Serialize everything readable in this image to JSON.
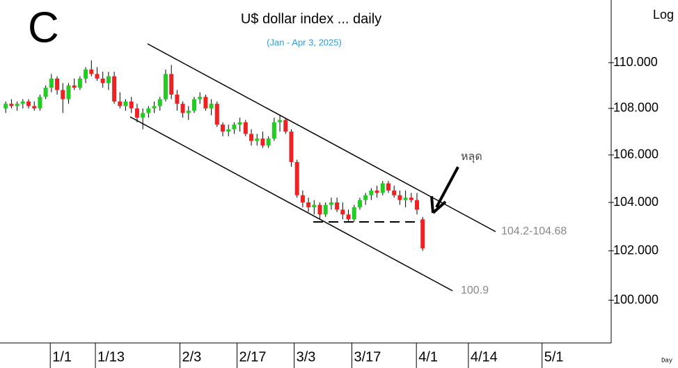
{
  "chart_data": {
    "type": "candlestick",
    "title": "U$ dollar index ... daily",
    "subtitle": "(Jan - Apr 3, 2025)",
    "corner_label": "C",
    "scale_label": "Log",
    "footer_label": "Day",
    "log_scale": true,
    "annotations": {
      "break": "หลุด",
      "upper": "104.2-104.68",
      "lower": "100.9"
    },
    "up_color": "#22cc22",
    "down_color": "#ee2222",
    "ylim": [
      98.3,
      112.8
    ],
    "yticks": [
      {
        "value": 100,
        "label": "100.000"
      },
      {
        "value": 102,
        "label": "102.000"
      },
      {
        "value": 104,
        "label": "104.000"
      },
      {
        "value": 106,
        "label": "106.000"
      },
      {
        "value": 108,
        "label": "108.000"
      },
      {
        "value": 110,
        "label": "110.000"
      }
    ],
    "xlim": [
      -1,
      106
    ],
    "xticks": [
      {
        "value": 7.8,
        "label": "1/1"
      },
      {
        "value": 15.7,
        "label": "1/13"
      },
      {
        "value": 30.5,
        "label": "2/3"
      },
      {
        "value": 40.5,
        "label": "2/17"
      },
      {
        "value": 50.5,
        "label": "3/3"
      },
      {
        "value": 60.6,
        "label": "3/17"
      },
      {
        "value": 71.9,
        "label": "4/1"
      },
      {
        "value": 81,
        "label": "4/14"
      },
      {
        "value": 93.9,
        "label": "5/1"
      }
    ],
    "ohlc": [
      [
        108.0,
        108.3,
        107.8,
        108.2
      ],
      [
        108.2,
        108.4,
        108.0,
        108.1
      ],
      [
        108.1,
        108.3,
        107.9,
        108.2
      ],
      [
        108.2,
        108.4,
        108.0,
        108.3
      ],
      [
        108.3,
        108.4,
        108.0,
        108.1
      ],
      [
        108.1,
        108.3,
        107.9,
        108.0
      ],
      [
        108.0,
        108.6,
        107.9,
        108.5
      ],
      [
        108.5,
        109.0,
        108.4,
        108.9
      ],
      [
        108.9,
        109.5,
        108.7,
        109.3
      ],
      [
        109.3,
        109.4,
        108.6,
        108.8
      ],
      [
        108.8,
        109.1,
        107.8,
        108.4
      ],
      [
        108.4,
        109.1,
        108.2,
        109.0
      ],
      [
        109.0,
        109.3,
        108.8,
        108.9
      ],
      [
        108.9,
        109.4,
        108.8,
        109.3
      ],
      [
        109.3,
        109.8,
        109.1,
        109.7
      ],
      [
        109.7,
        110.1,
        109.4,
        109.5
      ],
      [
        109.5,
        109.8,
        109.2,
        109.3
      ],
      [
        109.3,
        109.6,
        108.9,
        109.1
      ],
      [
        109.1,
        109.6,
        108.8,
        109.4
      ],
      [
        109.4,
        109.6,
        108.2,
        108.3
      ],
      [
        108.3,
        108.7,
        108.0,
        108.1
      ],
      [
        108.1,
        108.4,
        107.9,
        108.3
      ],
      [
        108.3,
        108.5,
        107.8,
        108.0
      ],
      [
        108.0,
        108.2,
        107.4,
        107.6
      ],
      [
        107.6,
        108.0,
        107.1,
        107.8
      ],
      [
        107.8,
        108.1,
        107.6,
        108.0
      ],
      [
        108.0,
        108.3,
        107.8,
        108.1
      ],
      [
        108.1,
        108.5,
        107.9,
        108.4
      ],
      [
        108.4,
        109.7,
        108.3,
        109.5
      ],
      [
        109.5,
        109.9,
        108.4,
        108.6
      ],
      [
        108.6,
        108.8,
        107.9,
        108.2
      ],
      [
        108.2,
        108.3,
        107.6,
        107.8
      ],
      [
        107.8,
        108.1,
        107.5,
        107.9
      ],
      [
        107.9,
        108.5,
        107.8,
        108.4
      ],
      [
        108.4,
        108.7,
        108.2,
        108.5
      ],
      [
        108.5,
        108.6,
        107.9,
        108.0
      ],
      [
        108.0,
        108.4,
        107.7,
        108.2
      ],
      [
        108.2,
        108.3,
        107.2,
        107.3
      ],
      [
        107.3,
        107.4,
        106.8,
        107.0
      ],
      [
        107.0,
        107.3,
        106.8,
        107.1
      ],
      [
        107.1,
        107.4,
        106.9,
        107.3
      ],
      [
        107.3,
        107.6,
        107.0,
        107.4
      ],
      [
        107.4,
        107.5,
        106.8,
        106.9
      ],
      [
        106.9,
        107.1,
        106.4,
        106.6
      ],
      [
        106.6,
        106.9,
        106.4,
        106.7
      ],
      [
        106.7,
        107.0,
        106.3,
        106.4
      ],
      [
        106.4,
        106.8,
        106.3,
        106.7
      ],
      [
        106.7,
        107.6,
        106.6,
        107.4
      ],
      [
        107.4,
        107.7,
        107.0,
        107.5
      ],
      [
        107.5,
        107.6,
        106.9,
        107.0
      ],
      [
        107.0,
        107.1,
        105.5,
        105.7
      ],
      [
        105.7,
        105.8,
        104.2,
        104.3
      ],
      [
        104.3,
        104.5,
        103.8,
        104.0
      ],
      [
        104.0,
        104.2,
        103.6,
        103.8
      ],
      [
        103.8,
        104.1,
        103.5,
        103.9
      ],
      [
        103.9,
        104.0,
        103.3,
        103.5
      ],
      [
        103.5,
        104.0,
        103.4,
        103.9
      ],
      [
        103.9,
        104.2,
        103.7,
        104.0
      ],
      [
        104.0,
        104.2,
        103.6,
        103.7
      ],
      [
        103.7,
        104.0,
        103.3,
        103.5
      ],
      [
        103.5,
        103.7,
        103.2,
        103.3
      ],
      [
        103.3,
        103.9,
        103.2,
        103.8
      ],
      [
        103.8,
        104.2,
        103.7,
        104.1
      ],
      [
        104.1,
        104.4,
        103.9,
        104.3
      ],
      [
        104.3,
        104.6,
        104.1,
        104.5
      ],
      [
        104.5,
        104.7,
        104.2,
        104.4
      ],
      [
        104.4,
        104.9,
        104.3,
        104.8
      ],
      [
        104.8,
        104.9,
        104.4,
        104.5
      ],
      [
        104.5,
        104.7,
        104.2,
        104.3
      ],
      [
        104.3,
        104.5,
        103.9,
        104.1
      ],
      [
        104.1,
        104.5,
        103.8,
        104.2
      ],
      [
        104.2,
        104.4,
        104.0,
        104.1
      ],
      [
        104.1,
        104.4,
        103.5,
        103.7
      ],
      [
        103.3,
        103.4,
        102.0,
        102.1
      ]
    ]
  }
}
